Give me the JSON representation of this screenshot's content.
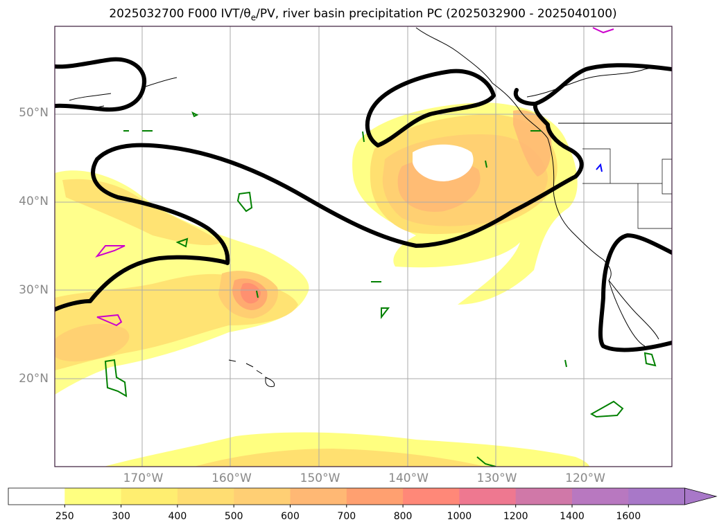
{
  "title": "2025032700 F000 IVT/θe/PV, river basin precipitation PC (2025032900 - 2025040100)",
  "map": {
    "lat_labels": [
      {
        "lat": 50,
        "text": "50°N"
      },
      {
        "lat": 40,
        "text": "40°N"
      },
      {
        "lat": 30,
        "text": "30°N"
      },
      {
        "lat": 20,
        "text": "20°N"
      }
    ],
    "lon_labels": [
      {
        "lon": -170,
        "text": "170°W"
      },
      {
        "lon": -160,
        "text": "160°W"
      },
      {
        "lon": -150,
        "text": "150°W"
      },
      {
        "lon": -140,
        "text": "140°W"
      },
      {
        "lon": -130,
        "text": "130°W"
      },
      {
        "lon": -120,
        "text": "120°W"
      }
    ],
    "gridline_color": "#aaaaaa",
    "frame_color": "#3a1a3a"
  },
  "colorbar": {
    "levels": [
      "250",
      "300",
      "400",
      "500",
      "600",
      "700",
      "800",
      "1000",
      "1200",
      "1400",
      "1600"
    ],
    "colors": [
      "#ffffff",
      "#ffff80",
      "#ffee70",
      "#ffdd72",
      "#ffcf74",
      "#ffb874",
      "#ffa070",
      "#ff8878",
      "#ee7890",
      "#d078a8",
      "#b878c0",
      "#a878c8"
    ],
    "extend": "max"
  },
  "contour_colors": {
    "theta_e": "#000000",
    "pv_green": "#008000",
    "pv_magenta": "#cc00cc",
    "pv_blue": "#0000ff"
  }
}
